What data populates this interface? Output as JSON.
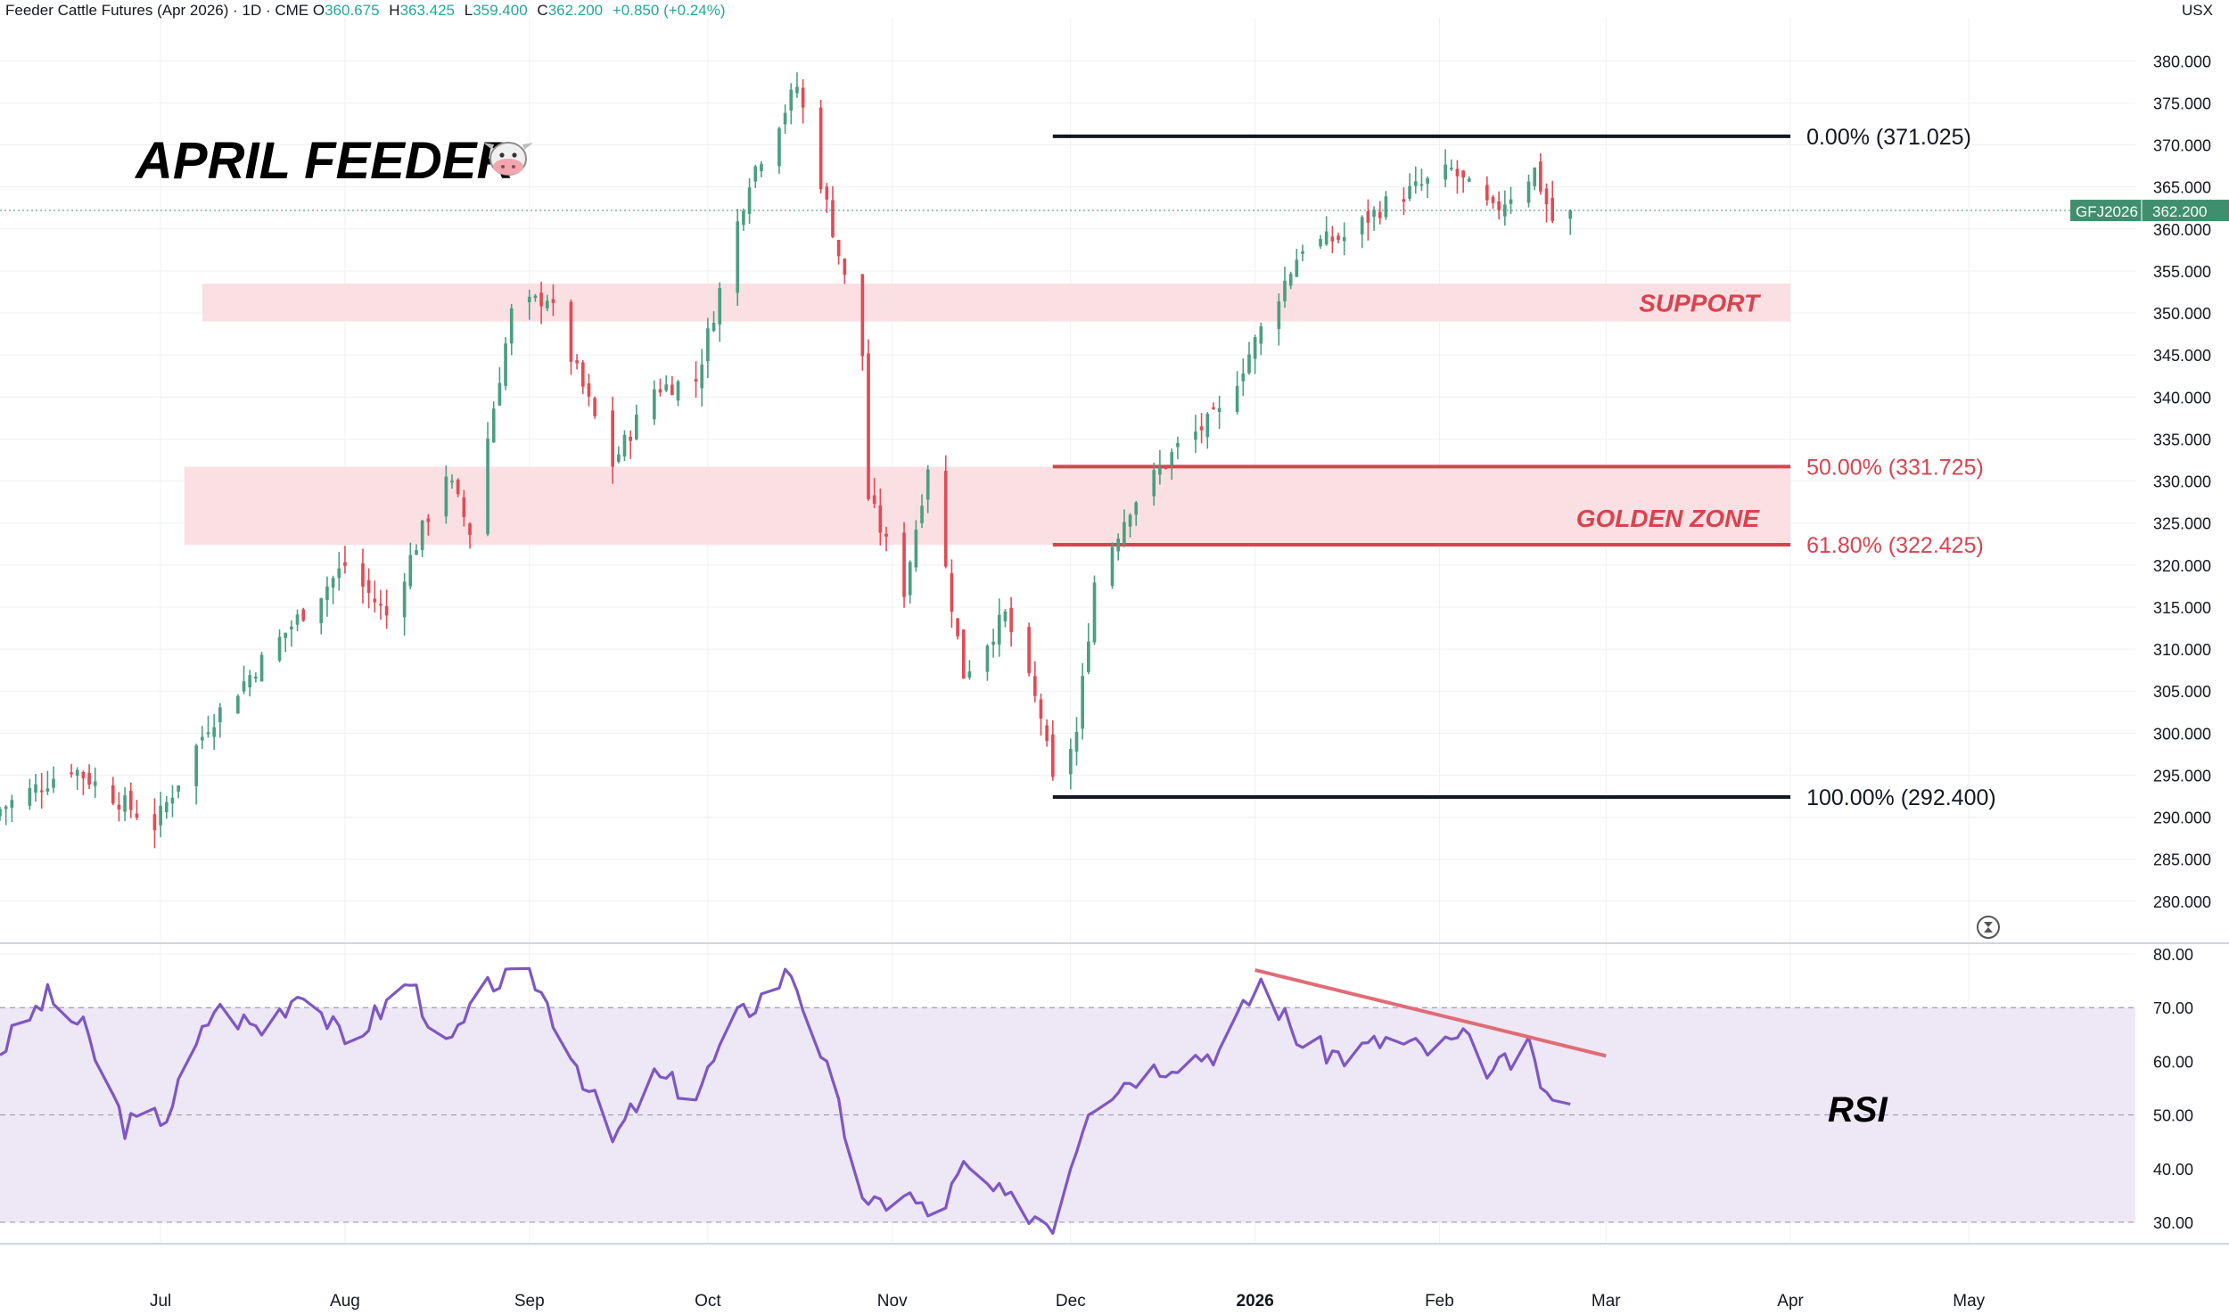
{
  "header": {
    "title": "Feeder Cattle Futures (Apr 2026) · 1D · CME",
    "open_label": "O",
    "open": "360.675",
    "high_label": "H",
    "high": "363.425",
    "low_label": "L",
    "low": "359.400",
    "close_label": "C",
    "close": "362.200",
    "change": "+0.850 (+0.24%)",
    "currency": "USX"
  },
  "colors": {
    "up": "#4c9e82",
    "down": "#e04b55",
    "rsi_line": "#7e57c2",
    "rsi_band": "#ede7f6",
    "zone_fill": "#f9dde0",
    "fib_red": "#d9434f",
    "divergence": "#e06c75",
    "grid": "#eef0f3",
    "price_tag": "#3f8f6f"
  },
  "chart_data": [
    {
      "type": "candlestick",
      "title": "APRIL FEEDER",
      "title_icon": "cow-face-icon",
      "symbol": "GFJ2026",
      "last_price": "362.200",
      "ylim": [
        275,
        383
      ],
      "y_ticks": [
        "380.000",
        "375.000",
        "370.000",
        "365.000",
        "360.000",
        "355.000",
        "350.000",
        "345.000",
        "340.000",
        "335.000",
        "330.000",
        "325.000",
        "320.000",
        "315.000",
        "310.000",
        "305.000",
        "300.000",
        "295.000",
        "290.000",
        "285.000",
        "280.000"
      ],
      "x_ticks": [
        {
          "label": "Jul",
          "date": "2025-07-01"
        },
        {
          "label": "Aug",
          "date": "2025-08-01"
        },
        {
          "label": "Sep",
          "date": "2025-09-01"
        },
        {
          "label": "Oct",
          "date": "2025-10-01"
        },
        {
          "label": "Nov",
          "date": "2025-11-01"
        },
        {
          "label": "Dec",
          "date": "2025-12-01"
        },
        {
          "label": "2026",
          "date": "2026-01-01",
          "bold": true
        },
        {
          "label": "Feb",
          "date": "2026-02-01"
        },
        {
          "label": "Mar",
          "date": "2026-03-01"
        },
        {
          "label": "Apr",
          "date": "2026-04-01"
        },
        {
          "label": "May",
          "date": "2026-05-01"
        }
      ],
      "x_range": [
        "2025-06-04",
        "2026-05-29"
      ],
      "key_closes": [
        {
          "date": "2025-06-04",
          "close": 291
        },
        {
          "date": "2025-06-16",
          "close": 296
        },
        {
          "date": "2025-06-30",
          "close": 289
        },
        {
          "date": "2025-07-09",
          "close": 301
        },
        {
          "date": "2025-07-22",
          "close": 312
        },
        {
          "date": "2025-08-01",
          "close": 320
        },
        {
          "date": "2025-08-08",
          "close": 314
        },
        {
          "date": "2025-08-18",
          "close": 331
        },
        {
          "date": "2025-08-22",
          "close": 324
        },
        {
          "date": "2025-08-29",
          "close": 350
        },
        {
          "date": "2025-09-04",
          "close": 352
        },
        {
          "date": "2025-09-15",
          "close": 332
        },
        {
          "date": "2025-09-22",
          "close": 341
        },
        {
          "date": "2025-09-29",
          "close": 342
        },
        {
          "date": "2025-10-08",
          "close": 366
        },
        {
          "date": "2025-10-16",
          "close": 377
        },
        {
          "date": "2025-10-22",
          "close": 360
        },
        {
          "date": "2025-10-27",
          "close": 345
        },
        {
          "date": "2025-10-28",
          "close": 328
        },
        {
          "date": "2025-11-03",
          "close": 317
        },
        {
          "date": "2025-11-07",
          "close": 332
        },
        {
          "date": "2025-11-13",
          "close": 307
        },
        {
          "date": "2025-11-20",
          "close": 314
        },
        {
          "date": "2025-11-26",
          "close": 302
        },
        {
          "date": "2025-11-28",
          "close": 294
        },
        {
          "date": "2025-12-02",
          "close": 300
        },
        {
          "date": "2025-12-05",
          "close": 318
        },
        {
          "date": "2025-12-11",
          "close": 327
        },
        {
          "date": "2025-12-19",
          "close": 334
        },
        {
          "date": "2025-12-26",
          "close": 338
        },
        {
          "date": "2026-01-02",
          "close": 348
        },
        {
          "date": "2026-01-09",
          "close": 358
        },
        {
          "date": "2026-01-16",
          "close": 359
        },
        {
          "date": "2026-01-23",
          "close": 363
        },
        {
          "date": "2026-02-03",
          "close": 367
        },
        {
          "date": "2026-02-10",
          "close": 362
        },
        {
          "date": "2026-02-17",
          "close": 367
        },
        {
          "date": "2026-02-20",
          "close": 361
        },
        {
          "date": "2026-02-23",
          "close": 362.2
        }
      ],
      "zones": [
        {
          "label": "SUPPORT",
          "from": 349,
          "to": 353.5,
          "start": "2025-07-08",
          "end": "2026-04-01"
        },
        {
          "label": "GOLDEN ZONE",
          "from": 322.4,
          "to": 331.7,
          "start": "2025-07-05",
          "end": "2026-04-01"
        }
      ],
      "fib_levels": [
        {
          "label": "0.00% (371.025)",
          "value": 371.025,
          "start": "2025-11-28",
          "end": "2026-04-01",
          "color": "#131722"
        },
        {
          "label": "50.00% (331.725)",
          "value": 331.725,
          "start": "2025-11-28",
          "end": "2026-04-01",
          "color": "#d9434f"
        },
        {
          "label": "61.80% (322.425)",
          "value": 322.425,
          "start": "2025-11-28",
          "end": "2026-04-01",
          "color": "#d9434f"
        },
        {
          "label": "100.00% (292.400)",
          "value": 292.4,
          "start": "2025-11-28",
          "end": "2026-04-01",
          "color": "#131722"
        }
      ]
    },
    {
      "type": "line",
      "title": "RSI",
      "ylim": [
        26,
        82
      ],
      "y_ticks": [
        "80.00",
        "70.00",
        "60.00",
        "50.00",
        "40.00",
        "30.00"
      ],
      "band": [
        30,
        70
      ],
      "midline": 50,
      "key_values": [
        {
          "date": "2025-06-04",
          "value": 62
        },
        {
          "date": "2025-06-12",
          "value": 72
        },
        {
          "date": "2025-06-18",
          "value": 66
        },
        {
          "date": "2025-06-25",
          "value": 48
        },
        {
          "date": "2025-07-02",
          "value": 50
        },
        {
          "date": "2025-07-10",
          "value": 70
        },
        {
          "date": "2025-07-18",
          "value": 66
        },
        {
          "date": "2025-07-25",
          "value": 74
        },
        {
          "date": "2025-08-01",
          "value": 63
        },
        {
          "date": "2025-08-12",
          "value": 75
        },
        {
          "date": "2025-08-18",
          "value": 62
        },
        {
          "date": "2025-08-26",
          "value": 75
        },
        {
          "date": "2025-09-02",
          "value": 75
        },
        {
          "date": "2025-09-08",
          "value": 62
        },
        {
          "date": "2025-09-15",
          "value": 45
        },
        {
          "date": "2025-09-22",
          "value": 57
        },
        {
          "date": "2025-09-29",
          "value": 54
        },
        {
          "date": "2025-10-06",
          "value": 68
        },
        {
          "date": "2025-10-15",
          "value": 77
        },
        {
          "date": "2025-10-20",
          "value": 62
        },
        {
          "date": "2025-10-28",
          "value": 32
        },
        {
          "date": "2025-11-03",
          "value": 36
        },
        {
          "date": "2025-11-08",
          "value": 30
        },
        {
          "date": "2025-11-13",
          "value": 40
        },
        {
          "date": "2025-11-20",
          "value": 34
        },
        {
          "date": "2025-11-28",
          "value": 30
        },
        {
          "date": "2025-12-04",
          "value": 52
        },
        {
          "date": "2025-12-11",
          "value": 57
        },
        {
          "date": "2025-12-18",
          "value": 60
        },
        {
          "date": "2025-12-26",
          "value": 62
        },
        {
          "date": "2026-01-02",
          "value": 75
        },
        {
          "date": "2026-01-09",
          "value": 63
        },
        {
          "date": "2026-01-16",
          "value": 61
        },
        {
          "date": "2026-01-23",
          "value": 64
        },
        {
          "date": "2026-01-30",
          "value": 62
        },
        {
          "date": "2026-02-05",
          "value": 64
        },
        {
          "date": "2026-02-10",
          "value": 58
        },
        {
          "date": "2026-02-16",
          "value": 62
        },
        {
          "date": "2026-02-20",
          "value": 51
        },
        {
          "date": "2026-02-23",
          "value": 52
        }
      ],
      "divergence_line": [
        {
          "date": "2026-01-01",
          "value": 77
        },
        {
          "date": "2026-03-01",
          "value": 61
        }
      ]
    }
  ]
}
